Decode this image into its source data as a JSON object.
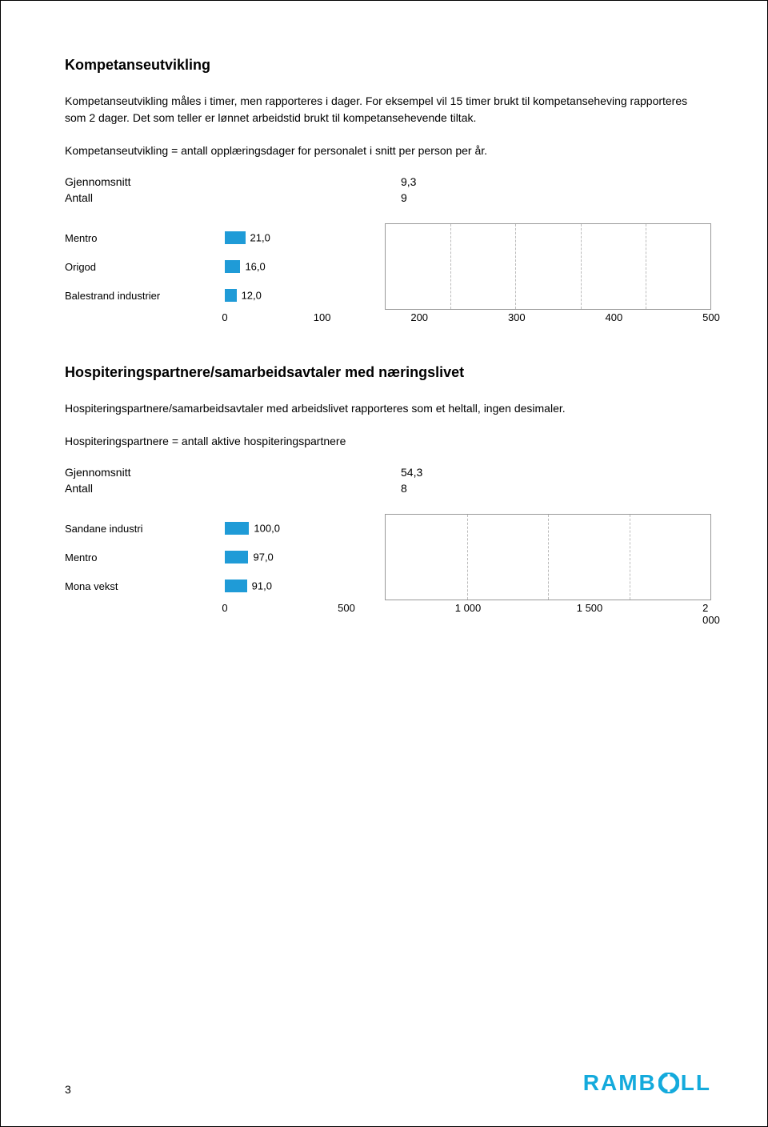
{
  "page_number": "3",
  "logo": {
    "text_before": "RAMB",
    "text_after": "LL",
    "color": "#14aadc"
  },
  "section1": {
    "title": "Kompetanseutvikling",
    "para1": "Kompetanseutvikling måles i timer, men rapporteres i dager. For eksempel vil 15 timer brukt til kompetanseheving rapporteres som 2 dager. Det som teller er lønnet arbeidstid brukt til kompetansehevende tiltak.",
    "para2": "Kompetanseutvikling = antall opplæringsdager for personalet i snitt per person per år.",
    "stats": {
      "row1_label": "Gjennomsnitt",
      "row1_value": "9,3",
      "row2_label": "Antall",
      "row2_value": "9"
    },
    "chart": {
      "type": "bar",
      "bar_color": "#1f9bd7",
      "grid_color": "#bbbbbb",
      "border_color": "#999999",
      "label_fontsize": 13,
      "value_fontsize": 13,
      "xmin": 0,
      "xmax": 500,
      "ticks": [
        "0",
        "100",
        "200",
        "300",
        "400",
        "500"
      ],
      "tick_positions_pct": [
        0,
        20,
        40,
        60,
        80,
        100
      ],
      "rows": [
        {
          "label": "Mentro",
          "value": 21.0,
          "value_label": "21,0"
        },
        {
          "label": "Origod",
          "value": 16.0,
          "value_label": "16,0"
        },
        {
          "label": "Balestrand industrier",
          "value": 12.0,
          "value_label": "12,0"
        }
      ]
    }
  },
  "section2": {
    "title": "Hospiteringspartnere/samarbeidsavtaler med næringslivet",
    "para1": "Hospiteringspartnere/samarbeidsavtaler med arbeidslivet rapporteres som et heltall, ingen desimaler.",
    "para2": "Hospiteringspartnere = antall aktive hospiteringspartnere",
    "stats": {
      "row1_label": "Gjennomsnitt",
      "row1_value": "54,3",
      "row2_label": "Antall",
      "row2_value": "8"
    },
    "chart": {
      "type": "bar",
      "bar_color": "#1f9bd7",
      "grid_color": "#bbbbbb",
      "border_color": "#999999",
      "label_fontsize": 13,
      "value_fontsize": 13,
      "xmin": 0,
      "xmax": 2000,
      "ticks": [
        "0",
        "500",
        "1 000",
        "1 500",
        "2 000"
      ],
      "tick_positions_pct": [
        0,
        25,
        50,
        75,
        100
      ],
      "rows": [
        {
          "label": "Sandane industri",
          "value": 100.0,
          "value_label": "100,0"
        },
        {
          "label": "Mentro",
          "value": 97.0,
          "value_label": "97,0"
        },
        {
          "label": "Mona vekst",
          "value": 91.0,
          "value_label": "91,0"
        }
      ]
    }
  }
}
